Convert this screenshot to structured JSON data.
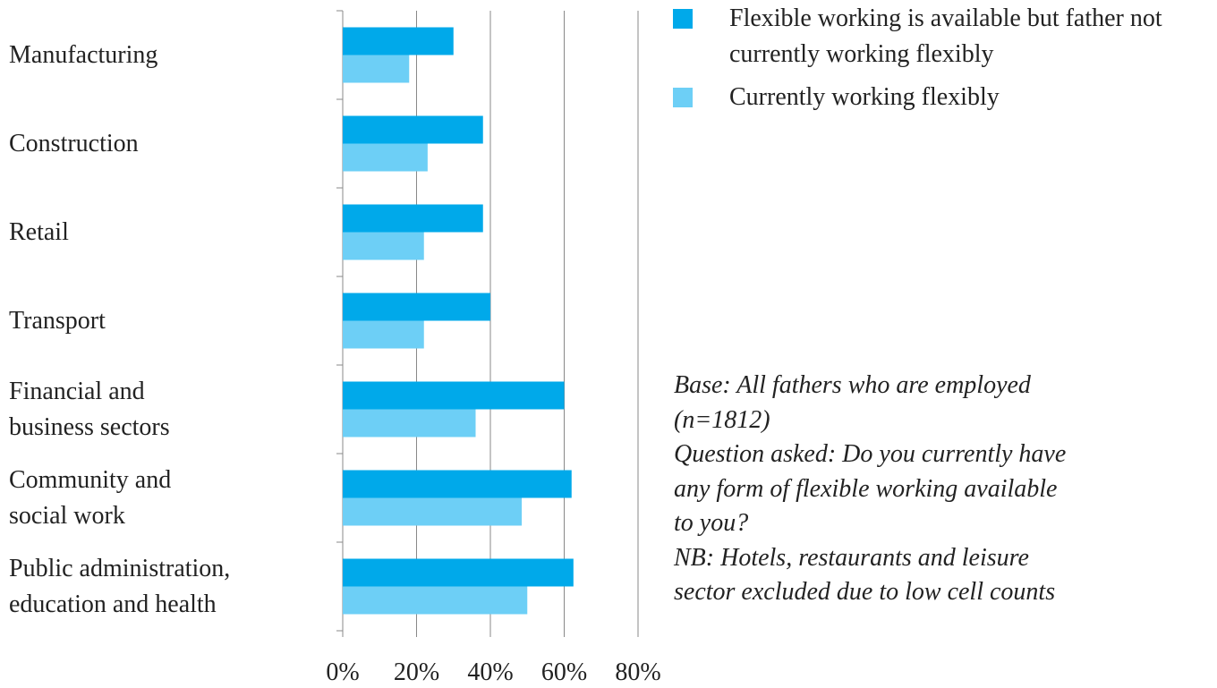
{
  "chart_data": {
    "type": "bar",
    "orientation": "horizontal",
    "categories": [
      "Manufacturing",
      "Construction",
      "Retail",
      "Transport",
      "Financial and\nbusiness sectors",
      "Community and\nsocial work",
      "Public administration,\neducation and health"
    ],
    "series": [
      {
        "name": "Flexible working is available but father not currently working flexibly",
        "color": "#00a9ea",
        "values": [
          30,
          38,
          38,
          40,
          60,
          62,
          62.5
        ]
      },
      {
        "name": "Currently working flexibly",
        "color": "#6dcff6",
        "values": [
          18,
          23,
          22,
          22,
          36,
          48.5,
          50
        ]
      }
    ],
    "xlim": [
      0,
      80
    ],
    "xticks": [
      {
        "value": 0,
        "label": "0%"
      },
      {
        "value": 20,
        "label": "20%"
      },
      {
        "value": 40,
        "label": "40%"
      },
      {
        "value": 60,
        "label": "60%"
      },
      {
        "value": 80,
        "label": "80%"
      }
    ],
    "grid": true,
    "legend": "top-right",
    "annotations": [
      "Base: All fathers who are employed\n(n=1812)\nQuestion asked: Do you currently have\nany form of flexible working available\nto you?\nNB: Hotels, restaurants and leisure\nsector excluded due to low cell counts"
    ]
  }
}
